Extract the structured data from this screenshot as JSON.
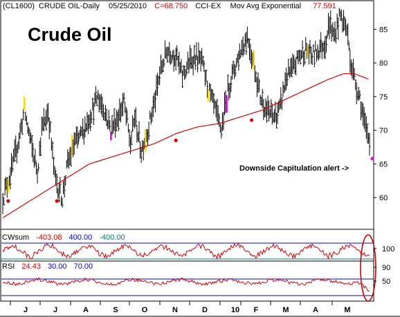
{
  "header": {
    "symbol": "(CL1600)",
    "name": "CRUDE OIL-Daily",
    "date": "05/25/2010",
    "close_label": "C=68.750",
    "indicator": "CCI-EX",
    "ma_label": "Mov Avg Exponential",
    "ma_value": "77.591"
  },
  "panel_labels": {
    "cwsum": "CWsum",
    "cwsum_value": "-403.08",
    "cwsum_upper": "400.00",
    "cwsum_lower": "-400.00",
    "rsi": "RSI",
    "rsi_value": "24.43",
    "rsi_lower": "30.00",
    "rsi_upper": "70.00"
  },
  "chart_data": {
    "type": "bar",
    "title": "Crude Oil",
    "annotation": "Downside Capitulation alert ->",
    "price_axis": {
      "ticks": [
        "85",
        "80",
        "75",
        "70",
        "65",
        "60"
      ],
      "tick_values": [
        85,
        80,
        75,
        70,
        65,
        60
      ],
      "ylim": [
        55.5,
        87.5
      ]
    },
    "cwsum_axis": {
      "ticks": [
        "100"
      ],
      "tick_values": [
        100
      ]
    },
    "rsi_axis": {
      "ticks": [
        "90",
        "50"
      ],
      "tick_values": [
        90,
        50
      ],
      "ylim": [
        0,
        100
      ]
    },
    "x_labels": [
      "J",
      "J",
      "A",
      "S",
      "O",
      "N",
      "D",
      "10",
      "F",
      "M",
      "A",
      "M"
    ],
    "anchors": [
      [
        0,
        60
      ],
      [
        8,
        64
      ],
      [
        14,
        68
      ],
      [
        20,
        73
      ],
      [
        26,
        68
      ],
      [
        32,
        64
      ],
      [
        36,
        70
      ],
      [
        42,
        73
      ],
      [
        48,
        63
      ],
      [
        55,
        60
      ],
      [
        60,
        65
      ],
      [
        66,
        68
      ],
      [
        72,
        69
      ],
      [
        80,
        72
      ],
      [
        88,
        75
      ],
      [
        94,
        73
      ],
      [
        100,
        70
      ],
      [
        106,
        72
      ],
      [
        112,
        74
      ],
      [
        118,
        68
      ],
      [
        122,
        72
      ],
      [
        128,
        67
      ],
      [
        134,
        70
      ],
      [
        140,
        74
      ],
      [
        146,
        79
      ],
      [
        152,
        82
      ],
      [
        160,
        81
      ],
      [
        166,
        78
      ],
      [
        172,
        80
      ],
      [
        178,
        81
      ],
      [
        184,
        80
      ],
      [
        190,
        76
      ],
      [
        196,
        73
      ],
      [
        202,
        70
      ],
      [
        208,
        76
      ],
      [
        214,
        79
      ],
      [
        220,
        82
      ],
      [
        226,
        84
      ],
      [
        232,
        80
      ],
      [
        238,
        75
      ],
      [
        244,
        73
      ],
      [
        250,
        72
      ],
      [
        256,
        73
      ],
      [
        262,
        78
      ],
      [
        268,
        79
      ],
      [
        274,
        81
      ],
      [
        280,
        82
      ],
      [
        286,
        81
      ],
      [
        292,
        82
      ],
      [
        298,
        83
      ],
      [
        302,
        86
      ],
      [
        306,
        84
      ],
      [
        312,
        87
      ],
      [
        318,
        85
      ],
      [
        322,
        80
      ],
      [
        326,
        77
      ],
      [
        330,
        75
      ],
      [
        334,
        71
      ],
      [
        338,
        69
      ]
    ],
    "ema_anchors": [
      [
        0,
        57
      ],
      [
        20,
        59
      ],
      [
        40,
        61
      ],
      [
        60,
        63
      ],
      [
        80,
        65
      ],
      [
        100,
        66
      ],
      [
        120,
        67
      ],
      [
        140,
        68
      ],
      [
        160,
        69.5
      ],
      [
        180,
        70.5
      ],
      [
        200,
        71
      ],
      [
        220,
        72
      ],
      [
        240,
        73
      ],
      [
        260,
        74.5
      ],
      [
        280,
        76
      ],
      [
        300,
        77.5
      ],
      [
        315,
        78.4
      ],
      [
        325,
        78.4
      ],
      [
        338,
        77.6
      ]
    ],
    "buy_signals": [
      [
        5,
        59.5
      ],
      [
        50,
        59.5
      ],
      [
        160,
        68.5
      ],
      [
        230,
        71.5
      ],
      [
        345,
        65.8
      ]
    ],
    "highlight_bars": [
      {
        "i": 5,
        "color": "#ffd800"
      },
      {
        "i": 20,
        "color": "#ffd800"
      },
      {
        "i": 64,
        "color": "#ffd800"
      },
      {
        "i": 100,
        "color": "#e010e0"
      },
      {
        "i": 132,
        "color": "#ffd800"
      },
      {
        "i": 190,
        "color": "#ffd800"
      },
      {
        "i": 207,
        "color": "#e010e0"
      },
      {
        "i": 232,
        "color": "#ffd800"
      },
      {
        "i": 282,
        "color": "#ffd800"
      }
    ],
    "n_bars": 340
  },
  "colors": {
    "price_bar": "#000000",
    "ema": "#d40000",
    "cwsum_line": "#d40000",
    "upper_band": "#0000cc",
    "lower_band": "#007a6a",
    "signal": "#e00000",
    "alert_dot": "#e010e0",
    "alert_ellipse": "#cc0000",
    "rsi_lower_line": "#0000cc"
  }
}
